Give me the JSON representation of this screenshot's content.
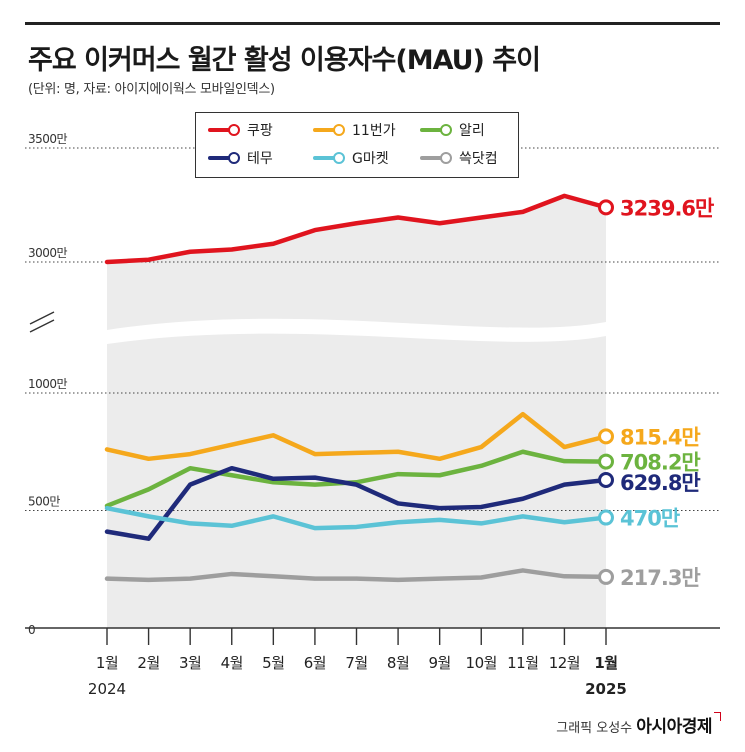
{
  "title": "주요 이커머스 월간 활성 이용자수(MAU) 추이",
  "subtitle": "(단위: 명, 자료: 아이지에이웍스 모바일인덱스)",
  "credit": {
    "text": "그래픽 오성수",
    "brand": "아시아경제"
  },
  "chart_data": {
    "type": "line",
    "categories": [
      "1월",
      "2월",
      "3월",
      "4월",
      "5월",
      "6월",
      "7월",
      "8월",
      "9월",
      "10월",
      "11월",
      "12월",
      "1월"
    ],
    "year_labels": {
      "start": "2024",
      "end": "2025"
    },
    "y_ticks": [
      "3500만",
      "3000만",
      "1000만",
      "500만",
      "0"
    ],
    "y_tick_values": [
      3500,
      3000,
      1000,
      500,
      0
    ],
    "unit": "만",
    "axis_break": {
      "from": 1000,
      "to": 3000
    },
    "ylim": [
      0,
      3500
    ],
    "grid": "dotted-horizontal",
    "legend_position": "top",
    "series": [
      {
        "name": "쿠팡",
        "color": "#e0141e",
        "label": "3239.6만",
        "label_color": "#e0141e",
        "values": [
          3000,
          3010,
          3045,
          3055,
          3080,
          3140,
          3170,
          3195,
          3170,
          3195,
          3220,
          3290,
          3239.6
        ]
      },
      {
        "name": "11번가",
        "color": "#f5a81c",
        "label": "815.4만",
        "label_color": "#f5a81c",
        "values": [
          760,
          720,
          740,
          780,
          820,
          740,
          745,
          750,
          720,
          770,
          910,
          770,
          815.4
        ]
      },
      {
        "name": "알리",
        "color": "#6cb33f",
        "label": "708.2만",
        "label_color": "#6cb33f",
        "values": [
          520,
          590,
          680,
          650,
          620,
          610,
          620,
          655,
          650,
          690,
          750,
          710,
          708.2
        ]
      },
      {
        "name": "테무",
        "color": "#1f2a7a",
        "label": "629.8만",
        "label_color": "#1f2a7a",
        "values": [
          410,
          380,
          610,
          680,
          635,
          640,
          610,
          530,
          510,
          515,
          550,
          610,
          629.8
        ]
      },
      {
        "name": "G마켓",
        "color": "#5bc3d6",
        "label": "470만",
        "label_color": "#5bc3d6",
        "values": [
          510,
          475,
          445,
          435,
          475,
          425,
          430,
          450,
          460,
          445,
          475,
          450,
          470
        ]
      },
      {
        "name": "쓱닷컴",
        "color": "#9e9e9e",
        "label": "217.3만",
        "label_color": "#9e9e9e",
        "values": [
          210,
          205,
          210,
          230,
          220,
          210,
          210,
          205,
          210,
          215,
          245,
          220,
          217.3
        ]
      }
    ]
  }
}
